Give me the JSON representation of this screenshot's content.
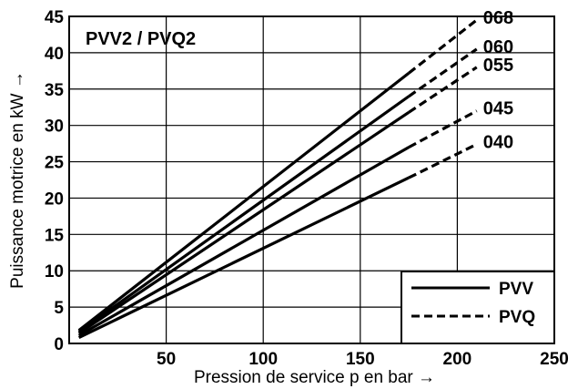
{
  "chart_data": {
    "type": "line",
    "title": "PVV2 / PVQ2",
    "xlabel": "Pression de service p en bar →",
    "ylabel": "Puissance motrice en kW →",
    "xlim": [
      0,
      250
    ],
    "ylim": [
      0,
      45
    ],
    "xticks": [
      "50",
      "100",
      "150",
      "200",
      "250"
    ],
    "yticks": [
      "0",
      "5",
      "10",
      "15",
      "20",
      "25",
      "30",
      "35",
      "40",
      "45"
    ],
    "grid": true,
    "legend": {
      "position": "bottom-right",
      "entries": [
        {
          "label": "PVV",
          "style": "solid"
        },
        {
          "label": "PVQ",
          "style": "dashed"
        }
      ]
    },
    "series": [
      {
        "name": "068",
        "solid": [
          [
            5,
            1.8
          ],
          [
            175,
            37.2
          ]
        ],
        "dashed": [
          [
            175,
            37.2
          ],
          [
            210,
            44.5
          ]
        ]
      },
      {
        "name": "060",
        "solid": [
          [
            5,
            1.6
          ],
          [
            175,
            34.0
          ]
        ],
        "dashed": [
          [
            175,
            34.0
          ],
          [
            210,
            40.5
          ]
        ]
      },
      {
        "name": "055",
        "solid": [
          [
            5,
            1.4
          ],
          [
            175,
            31.8
          ]
        ],
        "dashed": [
          [
            175,
            31.8
          ],
          [
            210,
            38.0
          ]
        ]
      },
      {
        "name": "045",
        "solid": [
          [
            5,
            1.1
          ],
          [
            175,
            27.0
          ]
        ],
        "dashed": [
          [
            175,
            27.0
          ],
          [
            210,
            32.0
          ]
        ]
      },
      {
        "name": "040",
        "solid": [
          [
            5,
            0.8
          ],
          [
            175,
            22.8
          ]
        ],
        "dashed": [
          [
            175,
            22.8
          ],
          [
            210,
            27.4
          ]
        ]
      }
    ]
  }
}
